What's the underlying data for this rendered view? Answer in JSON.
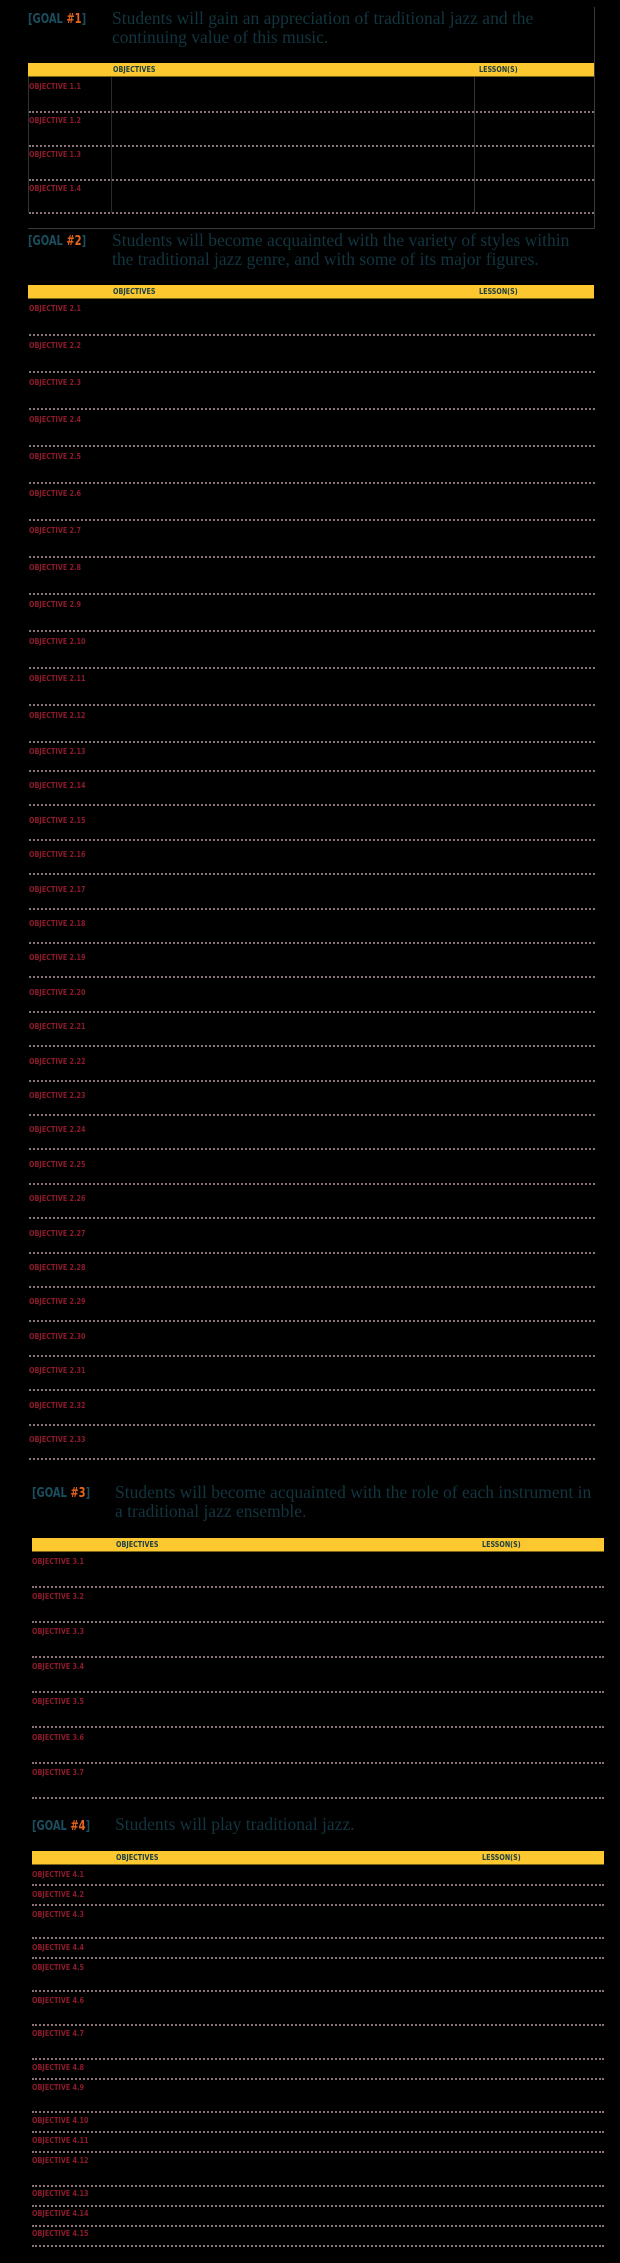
{
  "colors": {
    "background": "#000000",
    "header_bar": "#fcc72f",
    "goal_tag": "#1a4e5e",
    "goal_number": "#e8651e",
    "goal_text": "#12353f",
    "objective_label": "#8d1a2b",
    "row_rule": "#8a7478"
  },
  "table_headers": {
    "objectives": "OBJECTIVES",
    "lessons": "LESSON(S)"
  },
  "goals": [
    {
      "tag_open": "[GOAL ",
      "number": "#1",
      "tag_close": "]",
      "text": "Students will gain an appreciation of traditional jazz and the continuing value of this music.",
      "objectives": [
        "OBJECTIVE 1.1",
        "OBJECTIVE 1.2",
        "OBJECTIVE 1.3",
        "OBJECTIVE 1.4"
      ]
    },
    {
      "tag_open": "[GOAL ",
      "number": "#2",
      "tag_close": "]",
      "text": "Students will become acquainted with the variety of styles within the traditional jazz genre, and with some of its major figures.",
      "objectives": [
        "OBJECTIVE 2.1",
        "OBJECTIVE 2.2",
        "OBJECTIVE 2.3",
        "OBJECTIVE 2.4",
        "OBJECTIVE 2.5",
        "OBJECTIVE 2.6",
        "OBJECTIVE 2.7",
        "OBJECTIVE 2.8",
        "OBJECTIVE 2.9",
        "OBJECTIVE 2.10",
        "OBJECTIVE 2.11",
        "OBJECTIVE 2.12",
        "OBJECTIVE 2.13",
        "OBJECTIVE 2.14",
        "OBJECTIVE 2.15",
        "OBJECTIVE 2.16",
        "OBJECTIVE 2.17",
        "OBJECTIVE 2.18",
        "OBJECTIVE 2.19",
        "OBJECTIVE 2.20",
        "OBJECTIVE 2.21",
        "OBJECTIVE 2.22",
        "OBJECTIVE 2.23",
        "OBJECTIVE 2.24",
        "OBJECTIVE 2.25",
        "OBJECTIVE 2.26",
        "OBJECTIVE 2.27",
        "OBJECTIVE 2.28",
        "OBJECTIVE 2.29",
        "OBJECTIVE 2.30",
        "OBJECTIVE 2.31",
        "OBJECTIVE 2.32",
        "OBJECTIVE 2.33"
      ]
    },
    {
      "tag_open": "[GOAL ",
      "number": "#3",
      "tag_close": "]",
      "text": "Students will become acquainted with the role of each instrument in a traditional jazz ensemble.",
      "objectives": [
        "OBJECTIVE 3.1",
        "OBJECTIVE 3.2",
        "OBJECTIVE 3.3",
        "OBJECTIVE 3.4",
        "OBJECTIVE 3.5",
        "OBJECTIVE 3.6",
        "OBJECTIVE 3.7"
      ]
    },
    {
      "tag_open": "[GOAL ",
      "number": "#4",
      "tag_close": "]",
      "text": "Students will play traditional jazz.",
      "objectives": [
        "OBJECTIVE 4.1",
        "OBJECTIVE 4.2",
        "OBJECTIVE 4.3",
        "OBJECTIVE 4.4",
        "OBJECTIVE 4.5",
        "OBJECTIVE 4.6",
        "OBJECTIVE 4.7",
        "OBJECTIVE 4.8",
        "OBJECTIVE 4.9",
        "OBJECTIVE 4.10",
        "OBJECTIVE 4.11",
        "OBJECTIVE 4.12",
        "OBJECTIVE 4.13",
        "OBJECTIVE 4.14",
        "OBJECTIVE 4.15"
      ]
    }
  ]
}
